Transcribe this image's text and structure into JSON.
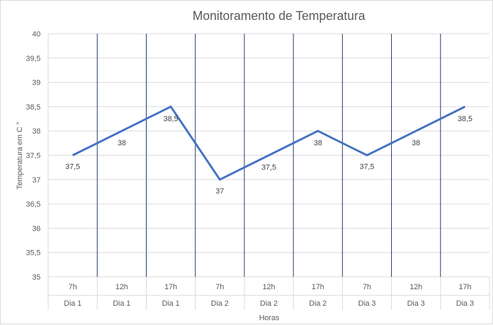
{
  "chart_data": {
    "type": "line",
    "title": "Monitoramento de Temperatura",
    "xlabel": "Horas",
    "ylabel": "Temperatura em C °",
    "ylim": [
      35,
      40
    ],
    "ytick_step": 0.5,
    "ytick_labels": [
      "35",
      "35,5",
      "36",
      "36,5",
      "37",
      "37,5",
      "38",
      "38,5",
      "39",
      "39,5",
      "40"
    ],
    "categories": [
      {
        "hour": "7h",
        "day": "Dia 1"
      },
      {
        "hour": "12h",
        "day": "Dia 1"
      },
      {
        "hour": "17h",
        "day": "Dia 1"
      },
      {
        "hour": "7h",
        "day": "Dia 2"
      },
      {
        "hour": "12h",
        "day": "Dia 2"
      },
      {
        "hour": "17h",
        "day": "Dia 2"
      },
      {
        "hour": "7h",
        "day": "Dia 3"
      },
      {
        "hour": "12h",
        "day": "Dia 3"
      },
      {
        "hour": "17h",
        "day": "Dia 3"
      }
    ],
    "series": [
      {
        "values": [
          37.5,
          38,
          38.5,
          37,
          37.5,
          38,
          37.5,
          38,
          38.5
        ],
        "data_labels": [
          "37,5",
          "38",
          "38,5",
          "37",
          "37,5",
          "38",
          "37,5",
          "38",
          "38,5"
        ],
        "color": "#4472c4"
      }
    ],
    "grid": true,
    "vertical_separators_color": "#1f3864",
    "horizontal_grid_color": "#d9d9d9",
    "legend": "none"
  }
}
